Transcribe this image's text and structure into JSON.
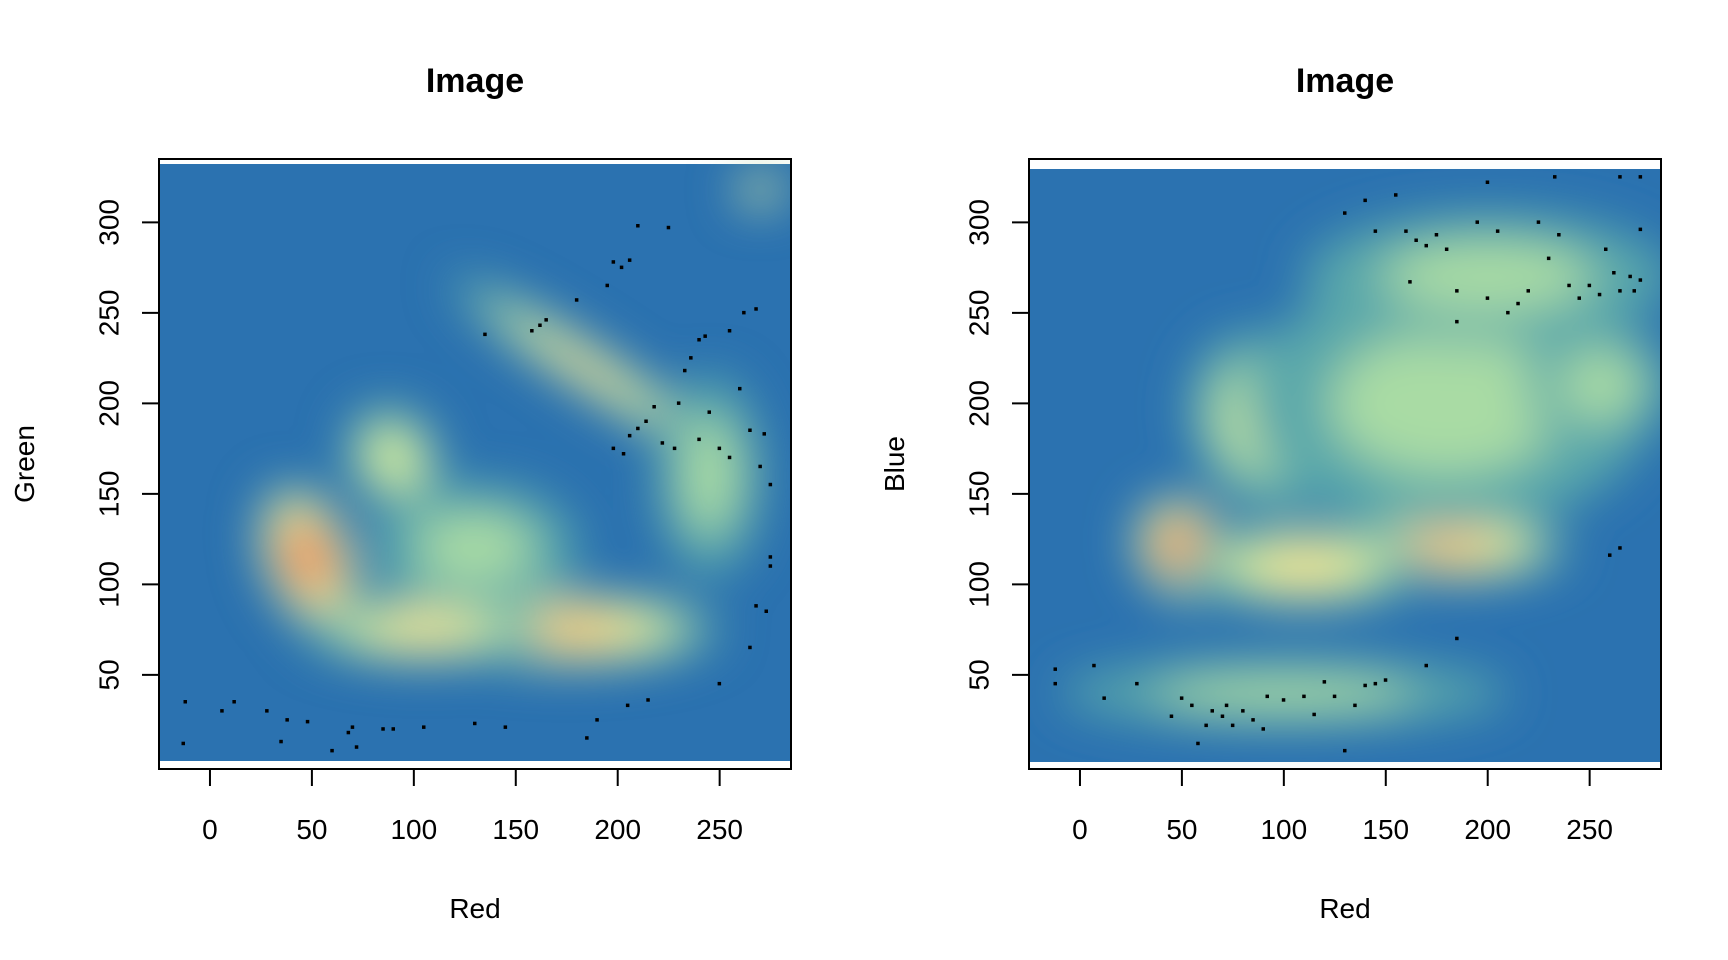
{
  "chart_data": [
    {
      "type": "heatmap",
      "title": "Image",
      "xlabel": "Red",
      "ylabel": "Green",
      "xlim": [
        -25,
        285
      ],
      "ylim": [
        -2,
        335
      ],
      "x_ticks": [
        0,
        50,
        100,
        150,
        200,
        250
      ],
      "y_ticks": [
        50,
        100,
        150,
        200,
        250,
        300
      ],
      "grid": false,
      "colormap": [
        "#2B72B0",
        "#5AA8AA",
        "#A9DBA4",
        "#E6F59B",
        "#FEE08B",
        "#FDB163",
        "#F46D43",
        "#D53E4F"
      ],
      "density_regions": [
        {
          "center": [
            48,
            115
          ],
          "spread": [
            22,
            42
          ],
          "tilt_deg": -20,
          "peak": 1.0
        },
        {
          "center": [
            175,
            75
          ],
          "spread": [
            75,
            20
          ],
          "tilt_deg": 0,
          "peak": 0.72
        },
        {
          "center": [
            105,
            75
          ],
          "spread": [
            60,
            18
          ],
          "tilt_deg": 0,
          "peak": 0.55
        },
        {
          "center": [
            185,
            220
          ],
          "spread": [
            80,
            12
          ],
          "tilt_deg": 33,
          "peak": 0.5
        },
        {
          "center": [
            270,
            318
          ],
          "spread": [
            12,
            10
          ],
          "tilt_deg": 0,
          "peak": 0.6
        },
        {
          "center": [
            90,
            170
          ],
          "spread": [
            22,
            30
          ],
          "tilt_deg": -30,
          "peak": 0.4
        },
        {
          "center": [
            245,
            160
          ],
          "spread": [
            25,
            55
          ],
          "tilt_deg": 0,
          "peak": 0.22
        },
        {
          "center": [
            130,
            120
          ],
          "spread": [
            50,
            35
          ],
          "tilt_deg": 0,
          "peak": 0.3
        }
      ],
      "outlier_points": [
        [
          -13,
          12
        ],
        [
          -12,
          35
        ],
        [
          6,
          30
        ],
        [
          12,
          35
        ],
        [
          28,
          30
        ],
        [
          35,
          13
        ],
        [
          38,
          25
        ],
        [
          48,
          24
        ],
        [
          60,
          8
        ],
        [
          68,
          18
        ],
        [
          70,
          21
        ],
        [
          72,
          10
        ],
        [
          85,
          20
        ],
        [
          90,
          20
        ],
        [
          105,
          21
        ],
        [
          130,
          23
        ],
        [
          145,
          21
        ],
        [
          135,
          238
        ],
        [
          158,
          240
        ],
        [
          162,
          243
        ],
        [
          165,
          246
        ],
        [
          180,
          257
        ],
        [
          195,
          265
        ],
        [
          198,
          278
        ],
        [
          202,
          275
        ],
        [
          206,
          279
        ],
        [
          210,
          298
        ],
        [
          225,
          297
        ],
        [
          185,
          15
        ],
        [
          190,
          25
        ],
        [
          205,
          33
        ],
        [
          215,
          36
        ],
        [
          198,
          175
        ],
        [
          203,
          172
        ],
        [
          206,
          182
        ],
        [
          210,
          186
        ],
        [
          214,
          190
        ],
        [
          218,
          198
        ],
        [
          222,
          178
        ],
        [
          228,
          175
        ],
        [
          230,
          200
        ],
        [
          233,
          218
        ],
        [
          236,
          225
        ],
        [
          240,
          235
        ],
        [
          243,
          237
        ],
        [
          245,
          195
        ],
        [
          240,
          180
        ],
        [
          250,
          175
        ],
        [
          255,
          170
        ],
        [
          260,
          208
        ],
        [
          265,
          185
        ],
        [
          270,
          165
        ],
        [
          272,
          183
        ],
        [
          275,
          155
        ],
        [
          268,
          88
        ],
        [
          273,
          85
        ],
        [
          275,
          110
        ],
        [
          275,
          115
        ],
        [
          265,
          65
        ],
        [
          250,
          45
        ],
        [
          255,
          240
        ],
        [
          262,
          250
        ],
        [
          268,
          252
        ]
      ]
    },
    {
      "type": "heatmap",
      "title": "Image",
      "xlabel": "Red",
      "ylabel": "Blue",
      "xlim": [
        -25,
        285
      ],
      "ylim": [
        -2,
        335
      ],
      "x_ticks": [
        0,
        50,
        100,
        150,
        200,
        250
      ],
      "y_ticks": [
        50,
        100,
        150,
        200,
        250,
        300
      ],
      "grid": false,
      "colormap": [
        "#2B72B0",
        "#5AA8AA",
        "#A9DBA4",
        "#E6F59B",
        "#FEE08B",
        "#FDB163",
        "#F46D43",
        "#D53E4F"
      ],
      "density_regions": [
        {
          "center": [
            50,
            120
          ],
          "spread": [
            22,
            30
          ],
          "tilt_deg": -30,
          "peak": 1.0
        },
        {
          "center": [
            180,
            120
          ],
          "spread": [
            60,
            18
          ],
          "tilt_deg": 0,
          "peak": 0.7
        },
        {
          "center": [
            110,
            110
          ],
          "spread": [
            60,
            22
          ],
          "tilt_deg": 0,
          "peak": 0.55
        },
        {
          "center": [
            90,
            190
          ],
          "spread": [
            35,
            50
          ],
          "tilt_deg": -20,
          "peak": 0.45
        },
        {
          "center": [
            180,
            200
          ],
          "spread": [
            100,
            70
          ],
          "tilt_deg": 0,
          "peak": 0.35
        },
        {
          "center": [
            100,
            40
          ],
          "spread": [
            110,
            18
          ],
          "tilt_deg": 0,
          "peak": 0.25
        },
        {
          "center": [
            200,
            270
          ],
          "spread": [
            90,
            35
          ],
          "tilt_deg": 0,
          "peak": 0.22
        },
        {
          "center": [
            255,
            210
          ],
          "spread": [
            35,
            35
          ],
          "tilt_deg": 0,
          "peak": 0.3
        }
      ],
      "outlier_points": [
        [
          -12,
          45
        ],
        [
          -12,
          53
        ],
        [
          7,
          55
        ],
        [
          12,
          37
        ],
        [
          28,
          45
        ],
        [
          45,
          27
        ],
        [
          50,
          37
        ],
        [
          55,
          33
        ],
        [
          58,
          12
        ],
        [
          62,
          22
        ],
        [
          65,
          30
        ],
        [
          70,
          27
        ],
        [
          72,
          33
        ],
        [
          75,
          22
        ],
        [
          80,
          30
        ],
        [
          85,
          25
        ],
        [
          90,
          20
        ],
        [
          92,
          38
        ],
        [
          100,
          36
        ],
        [
          110,
          38
        ],
        [
          115,
          28
        ],
        [
          120,
          46
        ],
        [
          125,
          38
        ],
        [
          130,
          8
        ],
        [
          135,
          33
        ],
        [
          140,
          44
        ],
        [
          145,
          45
        ],
        [
          150,
          47
        ],
        [
          170,
          55
        ],
        [
          185,
          70
        ],
        [
          130,
          305
        ],
        [
          140,
          312
        ],
        [
          145,
          295
        ],
        [
          155,
          315
        ],
        [
          160,
          295
        ],
        [
          165,
          290
        ],
        [
          170,
          287
        ],
        [
          175,
          293
        ],
        [
          180,
          285
        ],
        [
          162,
          267
        ],
        [
          185,
          262
        ],
        [
          195,
          300
        ],
        [
          200,
          258
        ],
        [
          205,
          295
        ],
        [
          210,
          250
        ],
        [
          215,
          255
        ],
        [
          220,
          262
        ],
        [
          225,
          300
        ],
        [
          230,
          280
        ],
        [
          235,
          293
        ],
        [
          240,
          265
        ],
        [
          245,
          258
        ],
        [
          250,
          265
        ],
        [
          255,
          260
        ],
        [
          258,
          285
        ],
        [
          262,
          272
        ],
        [
          265,
          262
        ],
        [
          270,
          270
        ],
        [
          272,
          262
        ],
        [
          275,
          268
        ],
        [
          275,
          296
        ],
        [
          200,
          322
        ],
        [
          233,
          325
        ],
        [
          265,
          325
        ],
        [
          275,
          325
        ],
        [
          260,
          116
        ],
        [
          265,
          120
        ],
        [
          185,
          245
        ]
      ]
    }
  ]
}
